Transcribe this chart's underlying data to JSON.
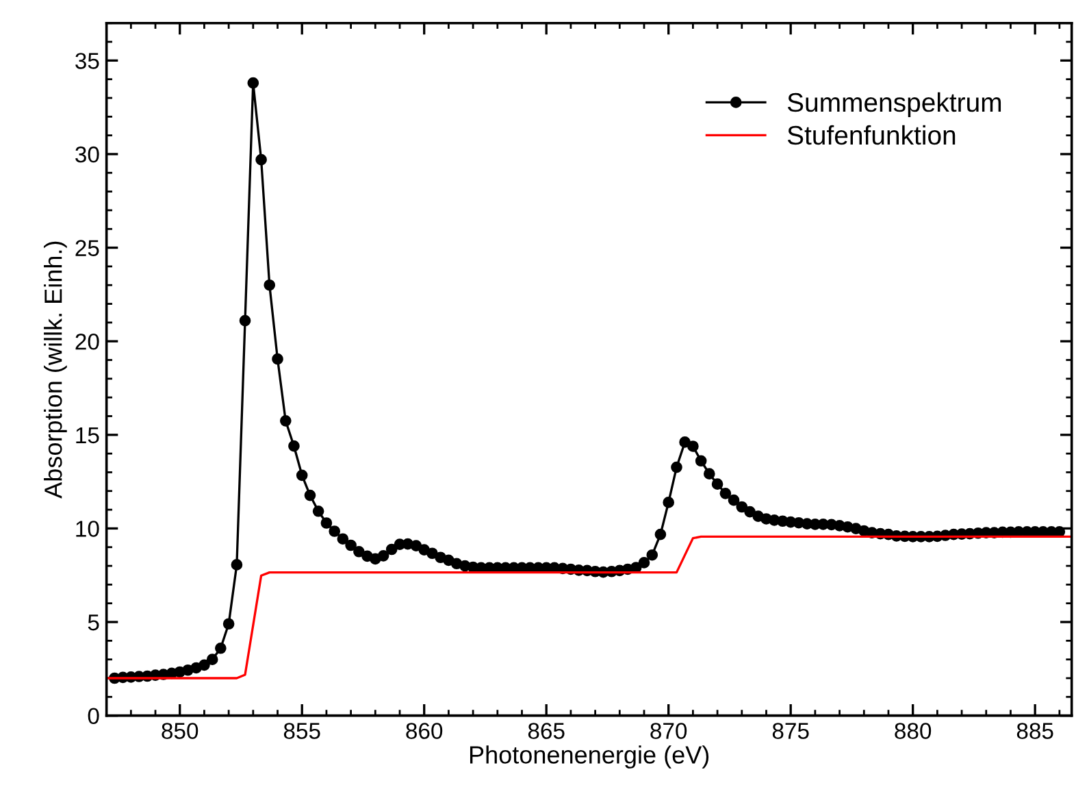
{
  "chart_data": {
    "type": "line",
    "xlabel": "Photonenenergie (eV)",
    "ylabel": "Absorption (willk. Einh.)",
    "xlim": [
      847,
      886.5
    ],
    "xticks": [
      850,
      855,
      860,
      865,
      870,
      875,
      880,
      885
    ],
    "ylim": [
      0,
      37
    ],
    "yticks": [
      0,
      5,
      10,
      15,
      20,
      25,
      30,
      35
    ],
    "grid": false,
    "legend": "top right",
    "series": [
      {
        "name": "Summenspektrum",
        "color": "#000000",
        "marker": "circle",
        "line_style": "solid",
        "x": [
          847.33,
          847.67,
          848,
          848.33,
          848.67,
          849,
          849.33,
          849.67,
          850,
          850.33,
          850.67,
          851,
          851.33,
          851.67,
          852,
          852.33,
          852.67,
          853,
          853.33,
          853.67,
          854,
          854.33,
          854.67,
          855,
          855.33,
          855.67,
          856,
          856.33,
          856.67,
          857,
          857.33,
          857.67,
          858,
          858.33,
          858.67,
          859,
          859.33,
          859.67,
          860,
          860.33,
          860.67,
          861,
          861.33,
          861.67,
          862,
          862.33,
          862.67,
          863,
          863.33,
          863.67,
          864,
          864.33,
          864.67,
          865,
          865.33,
          865.67,
          866,
          866.33,
          866.67,
          867,
          867.33,
          867.67,
          868,
          868.33,
          868.67,
          869,
          869.33,
          869.67,
          870,
          870.33,
          870.67,
          871,
          871.33,
          871.67,
          872,
          872.33,
          872.67,
          873,
          873.33,
          873.67,
          874,
          874.33,
          874.67,
          875,
          875.33,
          875.67,
          876,
          876.33,
          876.67,
          877,
          877.33,
          877.67,
          878,
          878.33,
          878.67,
          879,
          879.33,
          879.67,
          880,
          880.33,
          880.67,
          881,
          881.33,
          881.67,
          882,
          882.33,
          882.67,
          883,
          883.33,
          883.67,
          884,
          884.33,
          884.67,
          885,
          885.33,
          885.67,
          886
        ],
        "values": [
          2.0,
          2.04,
          2.06,
          2.09,
          2.11,
          2.16,
          2.2,
          2.26,
          2.33,
          2.43,
          2.55,
          2.7,
          3.0,
          3.6,
          4.9,
          8.06,
          21.1,
          33.8,
          29.7,
          23.0,
          19.05,
          15.75,
          14.4,
          12.84,
          11.77,
          10.92,
          10.29,
          9.85,
          9.44,
          9.1,
          8.76,
          8.52,
          8.37,
          8.54,
          8.88,
          9.15,
          9.17,
          9.08,
          8.86,
          8.67,
          8.45,
          8.3,
          8.12,
          8.0,
          7.93,
          7.9,
          7.9,
          7.9,
          7.9,
          7.9,
          7.9,
          7.9,
          7.9,
          7.9,
          7.9,
          7.86,
          7.82,
          7.77,
          7.75,
          7.7,
          7.67,
          7.7,
          7.75,
          7.82,
          7.91,
          8.17,
          8.58,
          9.68,
          11.39,
          13.27,
          14.61,
          14.39,
          13.61,
          12.92,
          12.37,
          11.87,
          11.51,
          11.15,
          10.89,
          10.65,
          10.51,
          10.44,
          10.39,
          10.34,
          10.3,
          10.25,
          10.22,
          10.22,
          10.2,
          10.15,
          10.08,
          9.99,
          9.87,
          9.77,
          9.72,
          9.68,
          9.6,
          9.58,
          9.56,
          9.56,
          9.56,
          9.58,
          9.63,
          9.68,
          9.7,
          9.72,
          9.75,
          9.77,
          9.77,
          9.8,
          9.8,
          9.82,
          9.82,
          9.82,
          9.82,
          9.82,
          9.82
        ]
      },
      {
        "name": "Stufenfunktion",
        "color": "#ff0000",
        "marker": "none",
        "line_style": "solid",
        "x": [
          847,
          852.33,
          852.67,
          853.33,
          853.67,
          870.33,
          871,
          871.33,
          886.5
        ],
        "values": [
          2.0,
          2.0,
          2.18,
          7.48,
          7.65,
          7.65,
          9.48,
          9.56,
          9.56
        ]
      }
    ]
  }
}
